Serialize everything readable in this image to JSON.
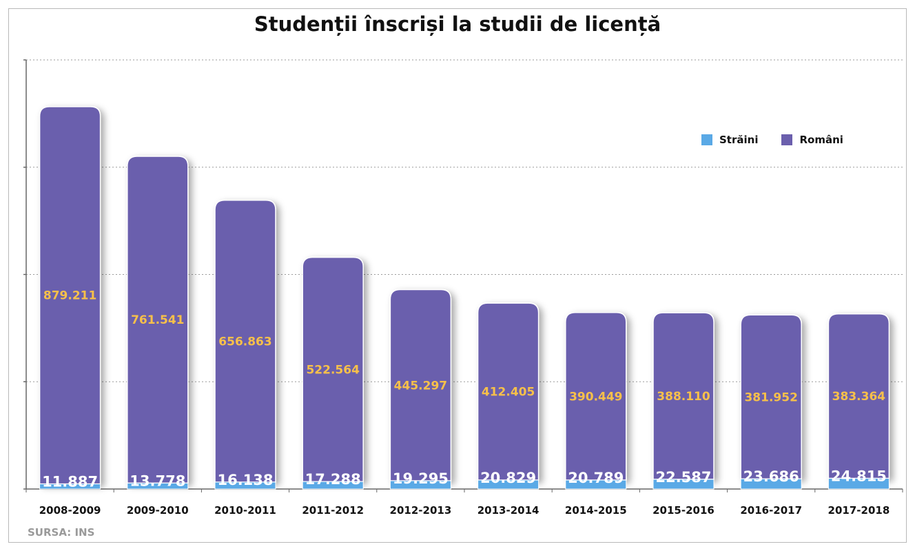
{
  "colors": {
    "romani": "#6b5fad",
    "straini": "#5aa9e6",
    "romani_label": "#f7c04a",
    "straini_label": "#ffffff"
  },
  "source": "SURSA: INS",
  "chart_data": {
    "type": "bar",
    "stacked": true,
    "title": "Studenții înscriși la studii de licență",
    "xlabel": "",
    "ylabel": "",
    "ylim": [
      0,
      1000000
    ],
    "grid": true,
    "legend": "top-right",
    "categories": [
      "2008-2009",
      "2009-2010",
      "2010-2011",
      "2011-2012",
      "2012-2013",
      "2013-2014",
      "2014-2015",
      "2015-2016",
      "2016-2017",
      "2017-2018"
    ],
    "series": [
      {
        "name": "Străini",
        "values": [
          11887,
          13778,
          16138,
          17288,
          19295,
          20829,
          20789,
          22587,
          23686,
          24815
        ],
        "labels": [
          "11.887",
          "13.778",
          "16.138",
          "17.288",
          "19.295",
          "20.829",
          "20.789",
          "22.587",
          "23.686",
          "24.815"
        ]
      },
      {
        "name": "Români",
        "values": [
          879211,
          761541,
          656863,
          522564,
          445297,
          412405,
          390449,
          388110,
          381952,
          383364
        ],
        "labels": [
          "879.211",
          "761.541",
          "656.863",
          "522.564",
          "445.297",
          "412.405",
          "390.449",
          "388.110",
          "381.952",
          "383.364"
        ]
      }
    ]
  }
}
